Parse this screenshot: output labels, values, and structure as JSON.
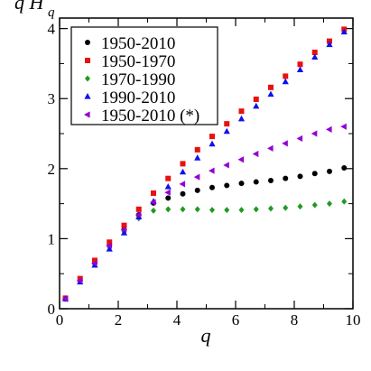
{
  "chart_data": {
    "type": "scatter",
    "title": "",
    "xlabel": "q",
    "ylabel_main": "q H",
    "ylabel_sub": "q",
    "xlim": [
      0,
      10
    ],
    "ylim": [
      0,
      4.15
    ],
    "x_ticks": [
      0,
      2,
      4,
      6,
      8,
      10
    ],
    "y_ticks": [
      0,
      1,
      2,
      3,
      4
    ],
    "grid": false,
    "legend_position": "top-left",
    "series": [
      {
        "name": "1950-2010",
        "color": "#000000",
        "marker": "circle",
        "x": [
          0.2,
          0.7,
          1.2,
          1.7,
          2.2,
          2.7,
          3.2,
          3.7,
          4.2,
          4.7,
          5.2,
          5.7,
          6.2,
          6.7,
          7.2,
          7.7,
          8.2,
          8.7,
          9.2,
          9.7
        ],
        "y": [
          0.14,
          0.4,
          0.65,
          0.9,
          1.13,
          1.34,
          1.51,
          1.58,
          1.64,
          1.69,
          1.73,
          1.76,
          1.79,
          1.81,
          1.83,
          1.86,
          1.89,
          1.93,
          1.96,
          2.01
        ]
      },
      {
        "name": "1950-1970",
        "color": "#e8110f",
        "marker": "square",
        "x": [
          0.2,
          0.7,
          1.2,
          1.7,
          2.2,
          2.7,
          3.2,
          3.7,
          4.2,
          4.7,
          5.2,
          5.7,
          6.2,
          6.7,
          7.2,
          7.7,
          8.2,
          8.7,
          9.2,
          9.7
        ],
        "y": [
          0.15,
          0.43,
          0.69,
          0.95,
          1.19,
          1.42,
          1.65,
          1.86,
          2.07,
          2.27,
          2.46,
          2.64,
          2.82,
          2.99,
          3.16,
          3.32,
          3.49,
          3.66,
          3.82,
          3.99
        ]
      },
      {
        "name": "1970-1990",
        "color": "#1f9a23",
        "marker": "diamond",
        "x": [
          0.2,
          0.7,
          1.2,
          1.7,
          2.2,
          2.7,
          3.2,
          3.7,
          4.2,
          4.7,
          5.2,
          5.7,
          6.2,
          6.7,
          7.2,
          7.7,
          8.2,
          8.7,
          9.2,
          9.7
        ],
        "y": [
          0.14,
          0.39,
          0.64,
          0.88,
          1.1,
          1.29,
          1.4,
          1.42,
          1.42,
          1.42,
          1.41,
          1.41,
          1.41,
          1.42,
          1.43,
          1.44,
          1.46,
          1.48,
          1.5,
          1.53
        ]
      },
      {
        "name": "1990-2010",
        "color": "#1010ee",
        "marker": "triangle-up",
        "x": [
          0.2,
          0.7,
          1.2,
          1.7,
          2.2,
          2.7,
          3.2,
          3.7,
          4.2,
          4.7,
          5.2,
          5.7,
          6.2,
          6.7,
          7.2,
          7.7,
          8.2,
          8.7,
          9.2,
          9.7
        ],
        "y": [
          0.14,
          0.38,
          0.62,
          0.85,
          1.08,
          1.31,
          1.53,
          1.74,
          1.95,
          2.15,
          2.35,
          2.53,
          2.71,
          2.89,
          3.06,
          3.24,
          3.41,
          3.59,
          3.77,
          3.95
        ]
      },
      {
        "name": "1950-2010 (*)",
        "color": "#9400d3",
        "marker": "triangle-left",
        "x": [
          0.2,
          0.7,
          1.2,
          1.7,
          2.2,
          2.7,
          3.2,
          3.7,
          4.2,
          4.7,
          5.2,
          5.7,
          6.2,
          6.7,
          7.2,
          7.7,
          8.2,
          8.7,
          9.2,
          9.7
        ],
        "y": [
          0.14,
          0.4,
          0.65,
          0.9,
          1.13,
          1.34,
          1.52,
          1.66,
          1.78,
          1.88,
          1.97,
          2.05,
          2.13,
          2.21,
          2.29,
          2.36,
          2.43,
          2.5,
          2.56,
          2.6
        ]
      }
    ]
  }
}
